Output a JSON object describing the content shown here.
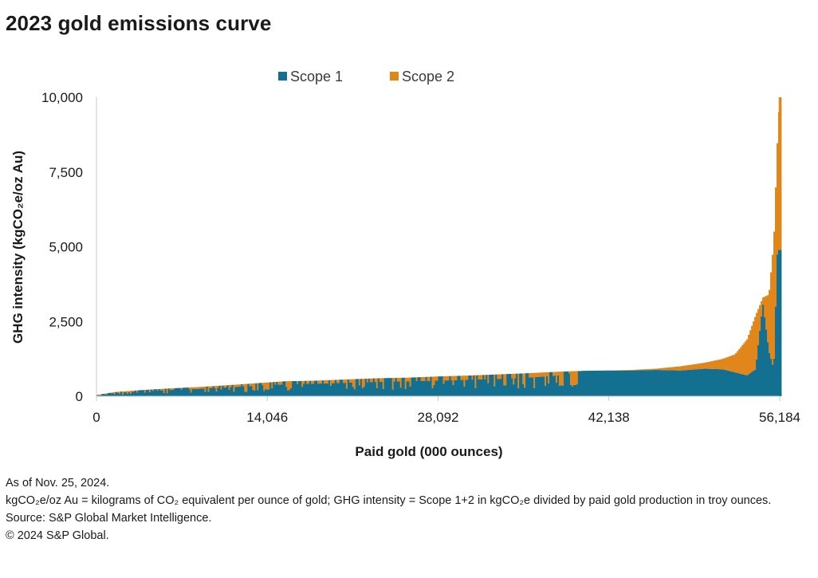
{
  "title": "2023 gold emissions curve",
  "chart_data": {
    "type": "bar",
    "subtype": "variable-width stacked bar (cost curve)",
    "xlabel": "Paid gold (000 ounces)",
    "ylabel": "GHG intensity (kgCO₂e/oz Au)",
    "xlim": [
      0,
      56184
    ],
    "ylim": [
      0,
      10000
    ],
    "x_ticks": [
      "0",
      "14,046",
      "28,092",
      "42,138",
      "56,184"
    ],
    "y_ticks": [
      "0",
      "2,500",
      "5,000",
      "7,500",
      "10,000"
    ],
    "legend_position": "top-center",
    "grid": false,
    "series": [
      {
        "name": "Scope 1",
        "color": "#147090"
      },
      {
        "name": "Scope 2",
        "color": "#e0861a"
      }
    ],
    "points": [
      {
        "x": 0,
        "s1": 20,
        "s2": 20
      },
      {
        "x": 1500,
        "s1": 110,
        "s2": 30
      },
      {
        "x": 3500,
        "s1": 160,
        "s2": 40
      },
      {
        "x": 5500,
        "s1": 200,
        "s2": 50
      },
      {
        "x": 8000,
        "s1": 240,
        "s2": 60
      },
      {
        "x": 10500,
        "s1": 290,
        "s2": 70
      },
      {
        "x": 13000,
        "s1": 350,
        "s2": 80
      },
      {
        "x": 15500,
        "s1": 400,
        "s2": 100
      },
      {
        "x": 18000,
        "s1": 420,
        "s2": 100
      },
      {
        "x": 20500,
        "s1": 450,
        "s2": 110
      },
      {
        "x": 23000,
        "s1": 480,
        "s2": 120
      },
      {
        "x": 25500,
        "s1": 500,
        "s2": 120
      },
      {
        "x": 28000,
        "s1": 520,
        "s2": 140
      },
      {
        "x": 30500,
        "s1": 550,
        "s2": 140
      },
      {
        "x": 33000,
        "s1": 580,
        "s2": 150
      },
      {
        "x": 35500,
        "s1": 620,
        "s2": 150
      },
      {
        "x": 38000,
        "s1": 700,
        "s2": 120
      },
      {
        "x": 40000,
        "s1": 850,
        "s2": 0
      },
      {
        "x": 42000,
        "s1": 860,
        "s2": 0
      },
      {
        "x": 44000,
        "s1": 860,
        "s2": 20
      },
      {
        "x": 46000,
        "s1": 880,
        "s2": 40
      },
      {
        "x": 48000,
        "s1": 860,
        "s2": 140
      },
      {
        "x": 50000,
        "s1": 920,
        "s2": 200
      },
      {
        "x": 51500,
        "s1": 900,
        "s2": 350
      },
      {
        "x": 52500,
        "s1": 800,
        "s2": 600
      },
      {
        "x": 53500,
        "s1": 700,
        "s2": 1200
      },
      {
        "x": 54200,
        "s1": 900,
        "s2": 1800
      },
      {
        "x": 54800,
        "s1": 3100,
        "s2": 200
      },
      {
        "x": 55300,
        "s1": 1500,
        "s2": 1900
      },
      {
        "x": 55700,
        "s1": 900,
        "s2": 4300
      },
      {
        "x": 56000,
        "s1": 4900,
        "s2": 3700
      },
      {
        "x": 56184,
        "s1": 4900,
        "s2": 5100
      }
    ]
  },
  "notes": [
    "As of Nov. 25, 2024.",
    "kgCO₂e/oz Au = kilograms of CO₂ equivalent per ounce of gold; GHG intensity = Scope 1+2 in kgCO₂e divided by paid gold production in troy ounces.",
    "Source: S&P Global Market Intelligence.",
    "© 2024 S&P Global."
  ]
}
